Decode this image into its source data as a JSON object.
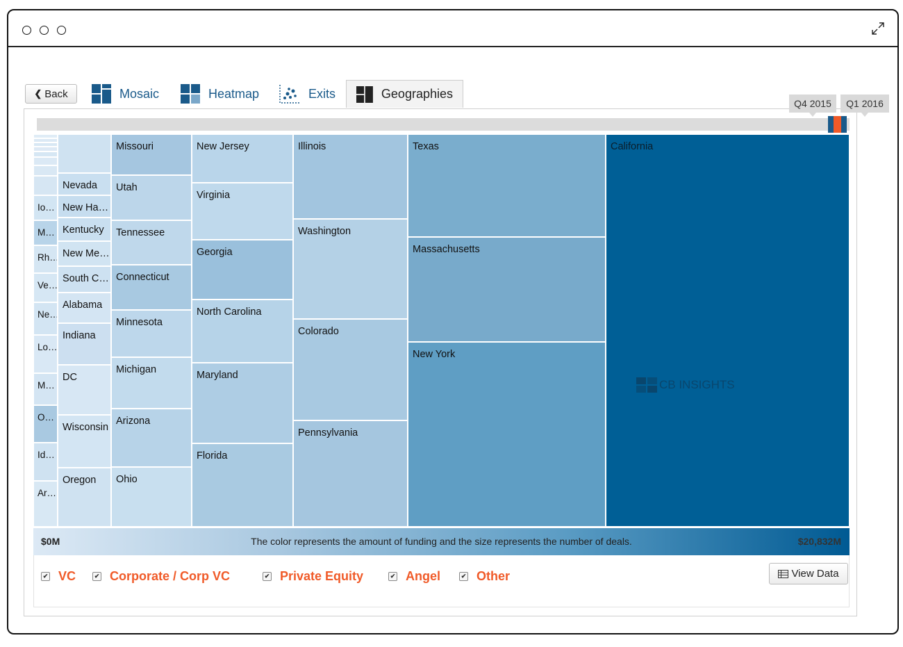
{
  "tabs": {
    "back": "Back",
    "mosaic": "Mosaic",
    "heatmap": "Heatmap",
    "exits": "Exits",
    "geographies": "Geographies"
  },
  "timeline": {
    "q4": "Q4 2015",
    "q1": "Q1 2016"
  },
  "colors": {
    "accent": "#f05a28",
    "brand": "#005a93",
    "min_fill": "#dce9f5"
  },
  "chart_data": {
    "type": "treemap",
    "size_measure": "number of deals",
    "color_measure": "amount of funding",
    "color_range": [
      "$0M",
      "$20,832M"
    ],
    "cells": [
      {
        "label": "California"
      },
      {
        "label": "Texas"
      },
      {
        "label": "Massachusetts"
      },
      {
        "label": "New York"
      },
      {
        "label": "Illinois"
      },
      {
        "label": "Washington"
      },
      {
        "label": "Colorado"
      },
      {
        "label": "Pennsylvania"
      },
      {
        "label": "New Jersey"
      },
      {
        "label": "Virginia"
      },
      {
        "label": "Georgia"
      },
      {
        "label": "North Carolina"
      },
      {
        "label": "Maryland"
      },
      {
        "label": "Florida"
      },
      {
        "label": "Missouri"
      },
      {
        "label": "Utah"
      },
      {
        "label": "Tennessee"
      },
      {
        "label": "Connecticut"
      },
      {
        "label": "Minnesota"
      },
      {
        "label": "Michigan"
      },
      {
        "label": "Arizona"
      },
      {
        "label": "Ohio"
      },
      {
        "label": "Nevada"
      },
      {
        "label": "New Ha…"
      },
      {
        "label": "Kentucky"
      },
      {
        "label": "New Me…"
      },
      {
        "label": "South C…"
      },
      {
        "label": "Alabama"
      },
      {
        "label": "Indiana"
      },
      {
        "label": "DC"
      },
      {
        "label": "Wisconsin"
      },
      {
        "label": "Oregon"
      },
      {
        "label": "Io…"
      },
      {
        "label": "M…"
      },
      {
        "label": "Rh…"
      },
      {
        "label": "Ve…"
      },
      {
        "label": "Ne…"
      },
      {
        "label": "Lo…"
      },
      {
        "label": "M…"
      },
      {
        "label": "O…"
      },
      {
        "label": "Id…"
      },
      {
        "label": "Ar…"
      }
    ]
  },
  "legend": {
    "min": "$0M",
    "max": "$20,832M",
    "caption": "The color represents the amount of funding and the size represents the number of deals."
  },
  "filters": [
    {
      "label": "VC",
      "checked": true
    },
    {
      "label": "Corporate / Corp VC",
      "checked": true
    },
    {
      "label": "Private Equity",
      "checked": true
    },
    {
      "label": "Angel",
      "checked": true
    },
    {
      "label": "Other",
      "checked": true
    }
  ],
  "view_data": "View Data",
  "watermark": "CB INSIGHTS"
}
